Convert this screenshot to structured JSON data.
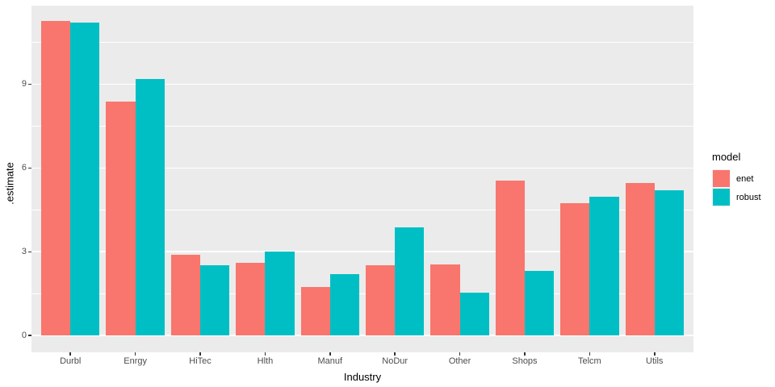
{
  "chart_data": {
    "type": "bar",
    "title": "",
    "xlabel": "Industry",
    "ylabel": ".estimate",
    "categories": [
      "Durbl",
      "Enrgy",
      "HiTec",
      "Hlth",
      "Manuf",
      "NoDur",
      "Other",
      "Shops",
      "Telcm",
      "Utils"
    ],
    "series": [
      {
        "name": "enet",
        "color": "#F8766D",
        "values": [
          11.25,
          8.39,
          2.9,
          2.59,
          1.75,
          2.53,
          2.56,
          5.54,
          4.74,
          5.45
        ]
      },
      {
        "name": "robust",
        "color": "#00BFC4",
        "values": [
          11.19,
          9.17,
          2.53,
          3.0,
          2.21,
          3.88,
          1.54,
          2.32,
          4.97,
          5.21
        ]
      }
    ],
    "yticks": [
      0,
      3,
      6,
      9
    ],
    "minor_yticks": [
      1.5,
      4.5,
      7.5,
      10.5
    ],
    "ylim": [
      -0.6,
      11.81
    ],
    "xlim_units": [
      0.4,
      10.6
    ],
    "bar_group_width_units": 0.9,
    "legend_title": "model",
    "legend_position": "right",
    "grid": true,
    "panel_bg": "#EBEBEB",
    "grid_color": "#FFFFFF",
    "tick_label_color": "#4D4D4D",
    "axis_title_color": "#000000"
  }
}
